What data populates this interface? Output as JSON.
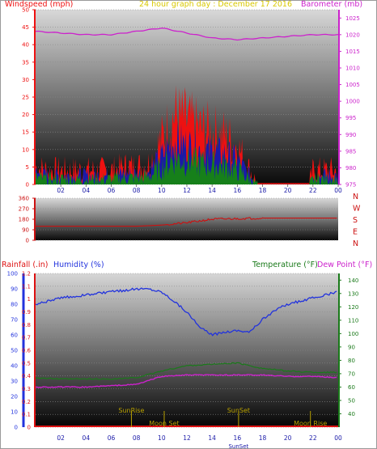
{
  "colors": {
    "wind": "#ee1111",
    "gust_mid": "#1a1aa8",
    "gust_low": "#16801a",
    "barometer": "#cc22cc",
    "direction": "#cc1111",
    "humidity": "#2233dd",
    "temperature": "#1a7a1a",
    "dewpoint": "#cc22cc",
    "rainfall": "#dd1111",
    "event": "#b8a000",
    "title": "#d8c800"
  },
  "chart_data": [
    {
      "type": "line",
      "title": "24 hour graph day : December 17 2016",
      "ylabel_left": "Windspeed (mph)",
      "ylabel_right": "Barometer (mb)",
      "x_ticks": [
        "02",
        "04",
        "06",
        "08",
        "10",
        "12",
        "14",
        "16",
        "18",
        "20",
        "22",
        "00"
      ],
      "y_left_ticks": [
        "0",
        "5",
        "10",
        "15",
        "20",
        "25",
        "30",
        "35",
        "40",
        "45",
        "50"
      ],
      "y_right_ticks": [
        "975",
        "980",
        "985",
        "990",
        "995",
        "1000",
        "1005",
        "1010",
        "1015",
        "1020",
        "1025"
      ],
      "ylim_left": [
        0,
        50
      ],
      "ylim_right": [
        975,
        1027.5
      ],
      "series": [
        {
          "name": "Windspeed (mph)",
          "axis": "left",
          "x": [
            0,
            1,
            2,
            3,
            4,
            5,
            6,
            7,
            8,
            9,
            10,
            11,
            12,
            13,
            14,
            15,
            16,
            17,
            17.6,
            18,
            19,
            20,
            21,
            21.7,
            22,
            23,
            24
          ],
          "values": [
            5,
            4,
            4,
            4,
            4,
            4,
            4,
            5,
            5,
            6,
            13,
            20,
            18,
            16,
            15,
            14,
            11,
            4,
            0,
            0,
            0,
            0,
            0,
            0,
            4,
            4,
            4
          ]
        },
        {
          "name": "Barometer (mb)",
          "axis": "right",
          "x": [
            0,
            2,
            4,
            6,
            8,
            10,
            12,
            14,
            16,
            18,
            20,
            22,
            24
          ],
          "values": [
            1021,
            1020.5,
            1020,
            1020,
            1021,
            1022,
            1020.5,
            1019,
            1018.5,
            1019,
            1019.5,
            1020,
            1020
          ]
        }
      ]
    },
    {
      "type": "line",
      "y_right_labels": [
        "N",
        "W",
        "S",
        "E",
        "N"
      ],
      "y_left_ticks": [
        "0",
        "90",
        "180",
        "270",
        "360"
      ],
      "ylim": [
        0,
        360
      ],
      "series": [
        {
          "name": "Wind direction",
          "x": [
            0,
            2,
            4,
            6,
            8,
            10,
            12,
            14,
            16,
            18,
            20,
            22,
            24
          ],
          "values": [
            120,
            120,
            120,
            120,
            120,
            130,
            150,
            180,
            185,
            190,
            190,
            190,
            190
          ]
        }
      ]
    },
    {
      "type": "line",
      "ylabel_left_a": "Rainfall (.in)",
      "ylabel_left_b": "Humidity (%)",
      "ylabel_right_a": "Temperature (°F)",
      "ylabel_right_b": "Dew Point (°F)",
      "rain_ticks": [
        "0",
        "0.1",
        "0.2",
        "0.3",
        "0.4",
        "0.5",
        "0.6",
        "0.7",
        "0.8",
        "0.9",
        "1",
        "1.1",
        "1.2"
      ],
      "humidity_ticks": [
        "0",
        "10",
        "20",
        "30",
        "40",
        "50",
        "60",
        "70",
        "80",
        "90",
        "100"
      ],
      "temp_ticks": [
        "40",
        "50",
        "60",
        "70",
        "80",
        "90",
        "100",
        "110",
        "120",
        "130",
        "140"
      ],
      "ylim_rain": [
        0,
        1.2
      ],
      "ylim_humidity": [
        0,
        100
      ],
      "ylim_temp": [
        30,
        145
      ],
      "series": [
        {
          "name": "Humidity (%)",
          "axis": "humidity",
          "x": [
            0,
            1,
            2,
            3,
            4,
            5,
            6,
            7,
            8,
            9,
            10,
            11,
            12,
            13,
            14,
            15,
            16,
            17,
            18,
            19,
            20,
            21,
            22,
            23,
            24
          ],
          "values": [
            80,
            82,
            84,
            85,
            86,
            87,
            88,
            89,
            90,
            90,
            88,
            82,
            75,
            65,
            60,
            62,
            63,
            62,
            70,
            76,
            80,
            82,
            84,
            86,
            88
          ]
        },
        {
          "name": "Temperature (°F)",
          "axis": "temp",
          "x": [
            0,
            2,
            4,
            6,
            8,
            10,
            12,
            14,
            16,
            18,
            20,
            22,
            24
          ],
          "values": [
            67,
            66,
            66,
            66,
            67,
            72,
            76,
            77,
            78,
            74,
            72,
            71,
            71
          ]
        },
        {
          "name": "Dew Point (°F)",
          "axis": "temp",
          "x": [
            0,
            2,
            4,
            6,
            8,
            10,
            12,
            14,
            16,
            18,
            20,
            22,
            24
          ],
          "values": [
            60,
            60,
            60,
            61,
            62,
            68,
            69,
            69,
            69,
            69,
            68,
            68,
            67
          ]
        },
        {
          "name": "Rainfall (.in)",
          "axis": "rain",
          "x": [
            0,
            24
          ],
          "values": [
            0,
            0
          ]
        }
      ],
      "events": [
        {
          "label": "SunRise",
          "x": 7.6
        },
        {
          "label": "Moon Set",
          "x": 10.2
        },
        {
          "label": "SunSet",
          "x": 16.1
        },
        {
          "label": "Moon Rise",
          "x": 21.8
        }
      ],
      "x_ticks": [
        "02",
        "04",
        "06",
        "08",
        "10",
        "12",
        "14",
        "16",
        "18",
        "20",
        "22",
        "00"
      ],
      "x_sunset_label": "SunSet"
    }
  ]
}
